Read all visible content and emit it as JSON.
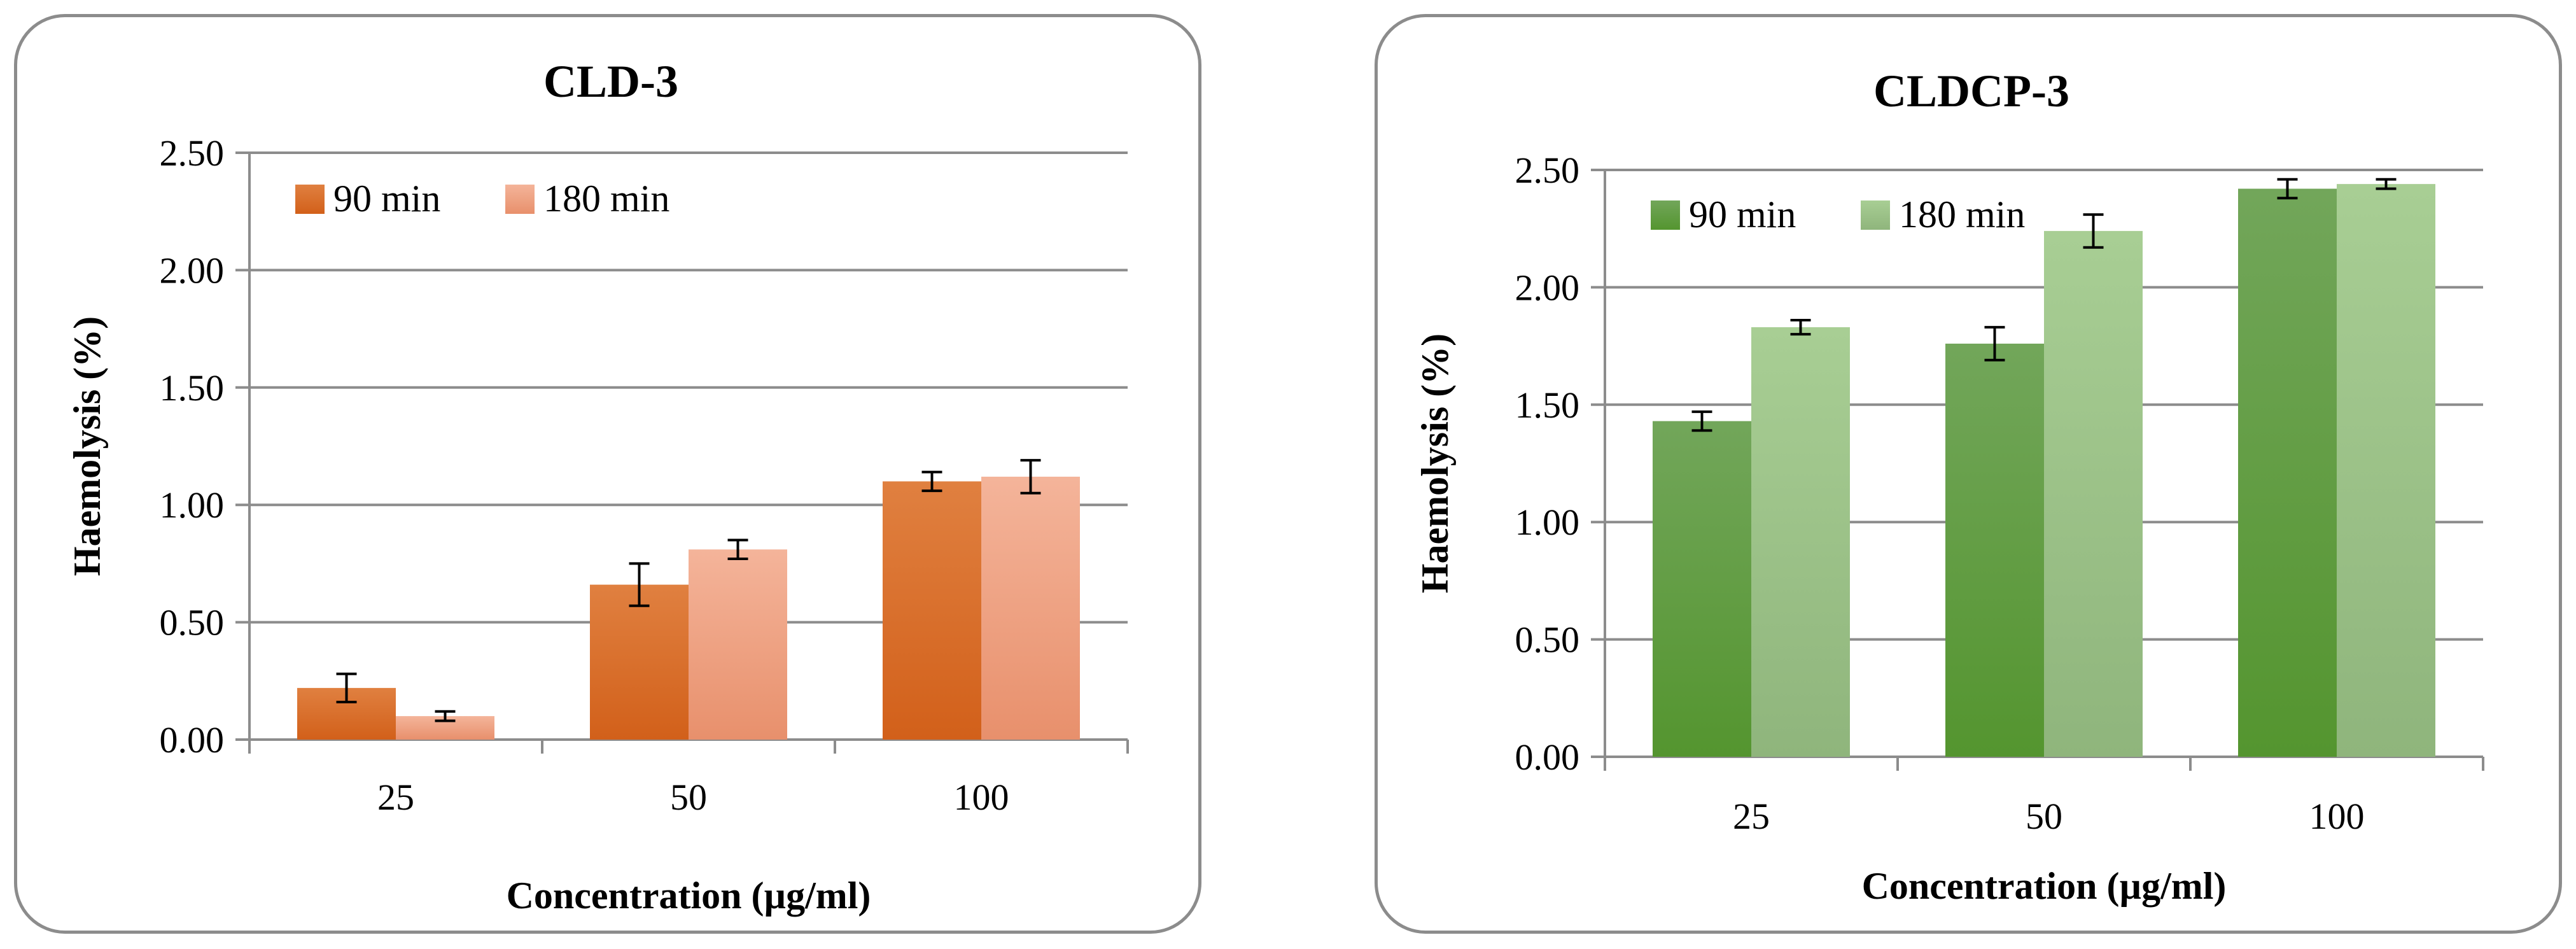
{
  "chart_data": [
    {
      "type": "bar",
      "title": "CLD-3",
      "xlabel": "Concentration (µg/ml)",
      "ylabel": "Haemolysis (%)",
      "categories": [
        "25",
        "50",
        "100"
      ],
      "ylim": [
        0,
        2.5
      ],
      "yticks": [
        "0.00",
        "0.50",
        "1.00",
        "1.50",
        "2.00",
        "2.50"
      ],
      "grid": true,
      "legend_position": "top-left",
      "series": [
        {
          "name": "90 min",
          "values": [
            0.22,
            0.66,
            1.1
          ],
          "errors": [
            0.06,
            0.09,
            0.04
          ],
          "color": "#d2601a",
          "color_light": "#e08040"
        },
        {
          "name": "180 min",
          "values": [
            0.1,
            0.81,
            1.12
          ],
          "errors": [
            0.02,
            0.04,
            0.07
          ],
          "color": "#e8906c",
          "color_light": "#f4b49a"
        }
      ]
    },
    {
      "type": "bar",
      "title": "CLDCP-3",
      "xlabel": "Concentration (µg/ml)",
      "ylabel": "Haemolysis (%)",
      "categories": [
        "25",
        "50",
        "100"
      ],
      "ylim": [
        0,
        2.5
      ],
      "yticks": [
        "0.00",
        "0.50",
        "1.00",
        "1.50",
        "2.00",
        "2.50"
      ],
      "grid": true,
      "legend_position": "top-left",
      "series": [
        {
          "name": "90 min",
          "values": [
            1.43,
            1.76,
            2.42
          ],
          "errors": [
            0.04,
            0.07,
            0.04
          ],
          "color": "#54952f",
          "color_light": "#72a65a"
        },
        {
          "name": "180 min",
          "values": [
            1.83,
            2.24,
            2.44
          ],
          "errors": [
            0.03,
            0.07,
            0.02
          ],
          "color": "#8fb57c",
          "color_light": "#a8ce94"
        }
      ]
    }
  ]
}
